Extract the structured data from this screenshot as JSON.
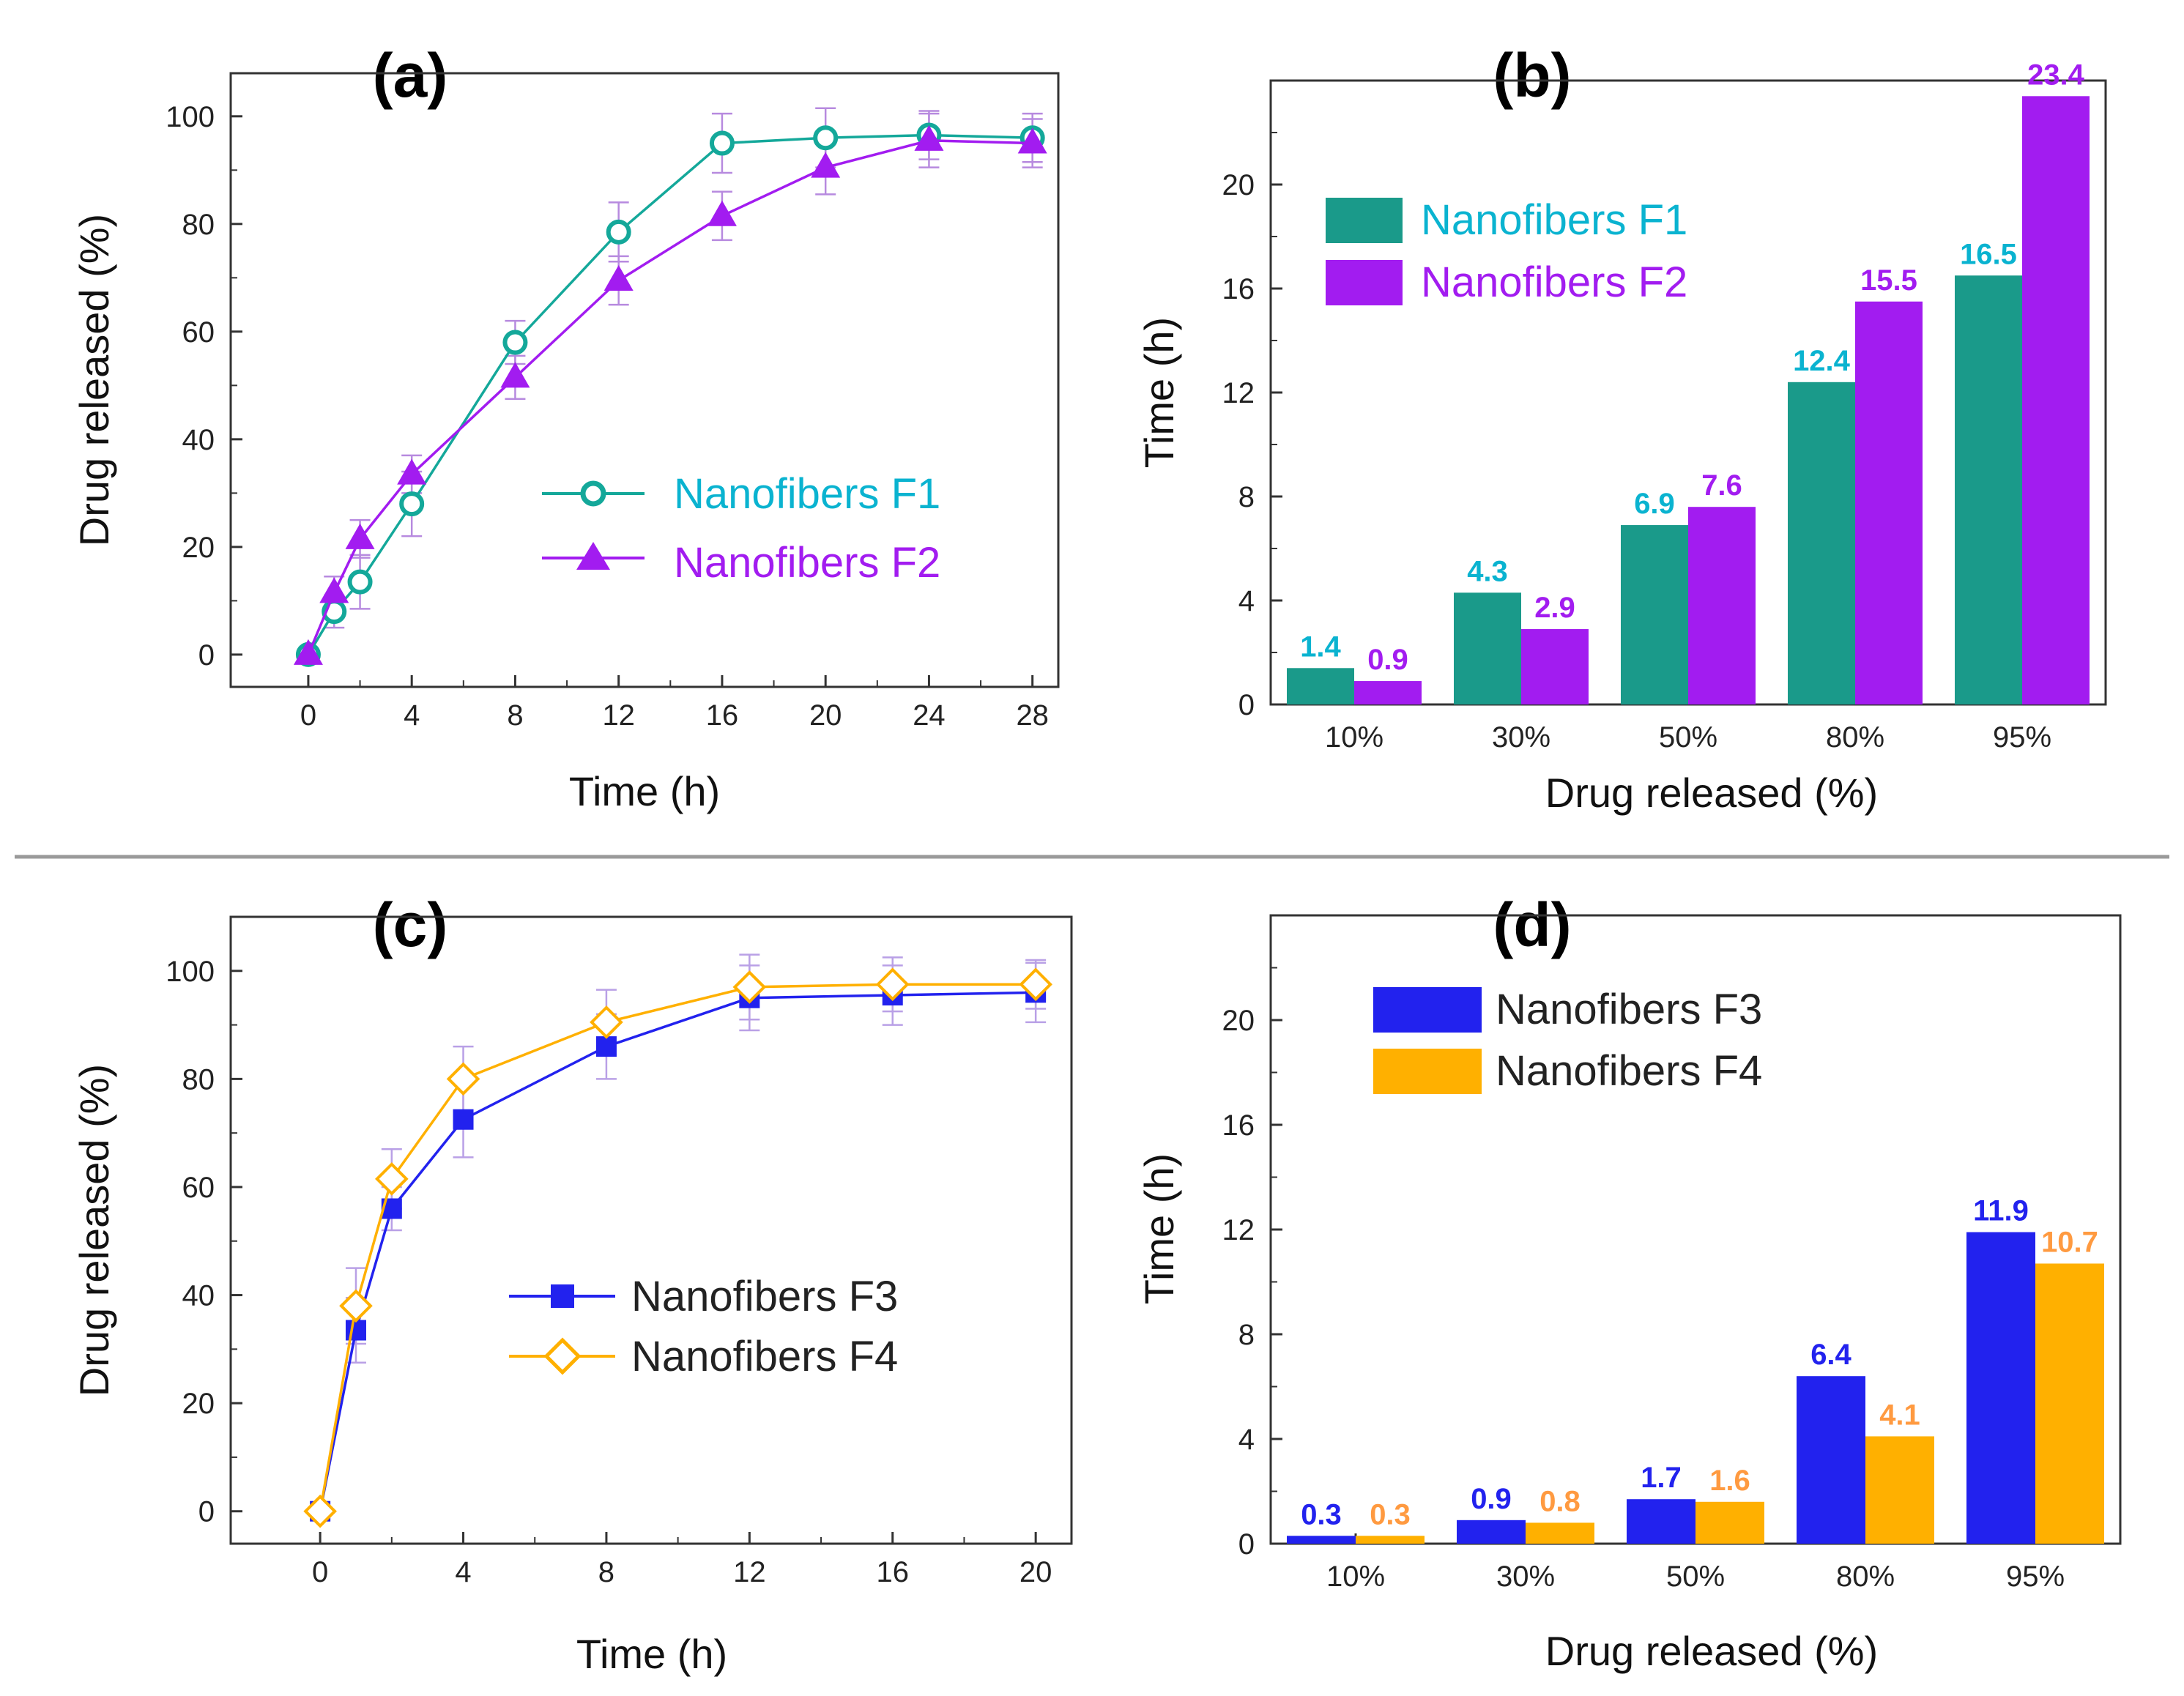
{
  "colors": {
    "F1": "#14a89a",
    "F1_bar": "#1a9a8a",
    "F1_label": "#0ab3d0",
    "F2": "#a21cf0",
    "F3": "#2222ee",
    "F4": "#ffb000",
    "F4_label": "#ff9a40",
    "err_a": "#b78adf",
    "err_c": "#b9a0e6"
  },
  "chart_data": [
    {
      "id": "a",
      "type": "line",
      "panel_label": "(a)",
      "xlabel": "Time (h)",
      "ylabel": "Drug released (%)",
      "xlim": [
        -3,
        29
      ],
      "ylim": [
        -6,
        108
      ],
      "xticks": [
        "0",
        "4",
        "8",
        "12",
        "16",
        "20",
        "24",
        "28"
      ],
      "yticks": [
        "0",
        "20",
        "40",
        "60",
        "80",
        "100"
      ],
      "series": [
        {
          "name": "Nanofibers F1",
          "marker": "open-circle",
          "x": [
            0,
            1,
            2,
            4,
            8,
            12,
            16,
            20,
            24,
            28
          ],
          "y": [
            0,
            8,
            13.5,
            28,
            58,
            78.5,
            95,
            96,
            96.5,
            96
          ],
          "err": [
            0,
            3,
            5,
            6,
            4,
            5.5,
            5.5,
            5.5,
            4.5,
            4.5
          ]
        },
        {
          "name": "Nanofibers F2",
          "marker": "filled-triangle",
          "x": [
            0,
            1,
            2,
            4,
            8,
            12,
            16,
            20,
            24,
            28
          ],
          "y": [
            0,
            11.5,
            21.5,
            33.5,
            51.5,
            69.5,
            81.5,
            90.5,
            95.5,
            95
          ],
          "err": [
            0,
            3,
            3.5,
            3.5,
            4,
            4.5,
            4.5,
            5,
            5,
            4.5
          ]
        }
      ]
    },
    {
      "id": "b",
      "type": "bar",
      "panel_label": "(b)",
      "xlabel": "Drug released (%)",
      "ylabel": "Time (h)",
      "ylim": [
        0,
        24
      ],
      "yticks": [
        "0",
        "4",
        "8",
        "12",
        "16",
        "20"
      ],
      "categories": [
        "10%",
        "30%",
        "50%",
        "80%",
        "95%"
      ],
      "series": [
        {
          "name": "Nanofibers F1",
          "values": [
            1.4,
            4.3,
            6.9,
            12.4,
            16.5
          ],
          "labels": [
            "1.4",
            "4.3",
            "6.9",
            "12.4",
            "16.5"
          ]
        },
        {
          "name": "Nanofibers F2",
          "values": [
            0.9,
            2.9,
            7.6,
            15.5,
            23.4
          ],
          "labels": [
            "0.9",
            "2.9",
            "7.6",
            "15.5",
            "23.4"
          ]
        }
      ]
    },
    {
      "id": "c",
      "type": "line",
      "panel_label": "(c)",
      "xlabel": "Time (h)",
      "ylabel": "Drug released (%)",
      "xlim": [
        -2.5,
        21
      ],
      "ylim": [
        -6,
        110
      ],
      "xticks": [
        "0",
        "4",
        "8",
        "12",
        "16",
        "20"
      ],
      "yticks": [
        "0",
        "20",
        "40",
        "60",
        "80",
        "100"
      ],
      "series": [
        {
          "name": "Nanofibers F3",
          "marker": "filled-square",
          "x": [
            0,
            1,
            2,
            4,
            8,
            12,
            16,
            20
          ],
          "y": [
            0,
            33.5,
            56,
            72.5,
            86,
            95,
            95.5,
            96
          ],
          "err": [
            0,
            6,
            4,
            7,
            6,
            6,
            5.5,
            5.5
          ]
        },
        {
          "name": "Nanofibers F4",
          "marker": "open-diamond",
          "x": [
            0,
            1,
            2,
            4,
            8,
            12,
            16,
            20
          ],
          "y": [
            0,
            38,
            61.5,
            80,
            90.5,
            97,
            97.5,
            97.5
          ],
          "err": [
            0,
            7,
            5.5,
            6,
            6,
            6,
            5,
            4.5
          ]
        }
      ]
    },
    {
      "id": "d",
      "type": "bar",
      "panel_label": "(d)",
      "xlabel": "Drug released (%)",
      "ylabel": "Time (h)",
      "ylim": [
        0,
        24
      ],
      "yticks": [
        "0",
        "4",
        "8",
        "12",
        "16",
        "20"
      ],
      "categories": [
        "10%",
        "30%",
        "50%",
        "80%",
        "95%"
      ],
      "series": [
        {
          "name": "Nanofibers F3",
          "values": [
            0.3,
            0.9,
            1.7,
            6.4,
            11.9
          ],
          "labels": [
            "0.3",
            "0.9",
            "1.7",
            "6.4",
            "11.9"
          ]
        },
        {
          "name": "Nanofibers F4",
          "values": [
            0.3,
            0.8,
            1.6,
            4.1,
            10.7
          ],
          "labels": [
            "0.3",
            "0.8",
            "1.6",
            "4.1",
            "10.7"
          ]
        }
      ]
    }
  ]
}
